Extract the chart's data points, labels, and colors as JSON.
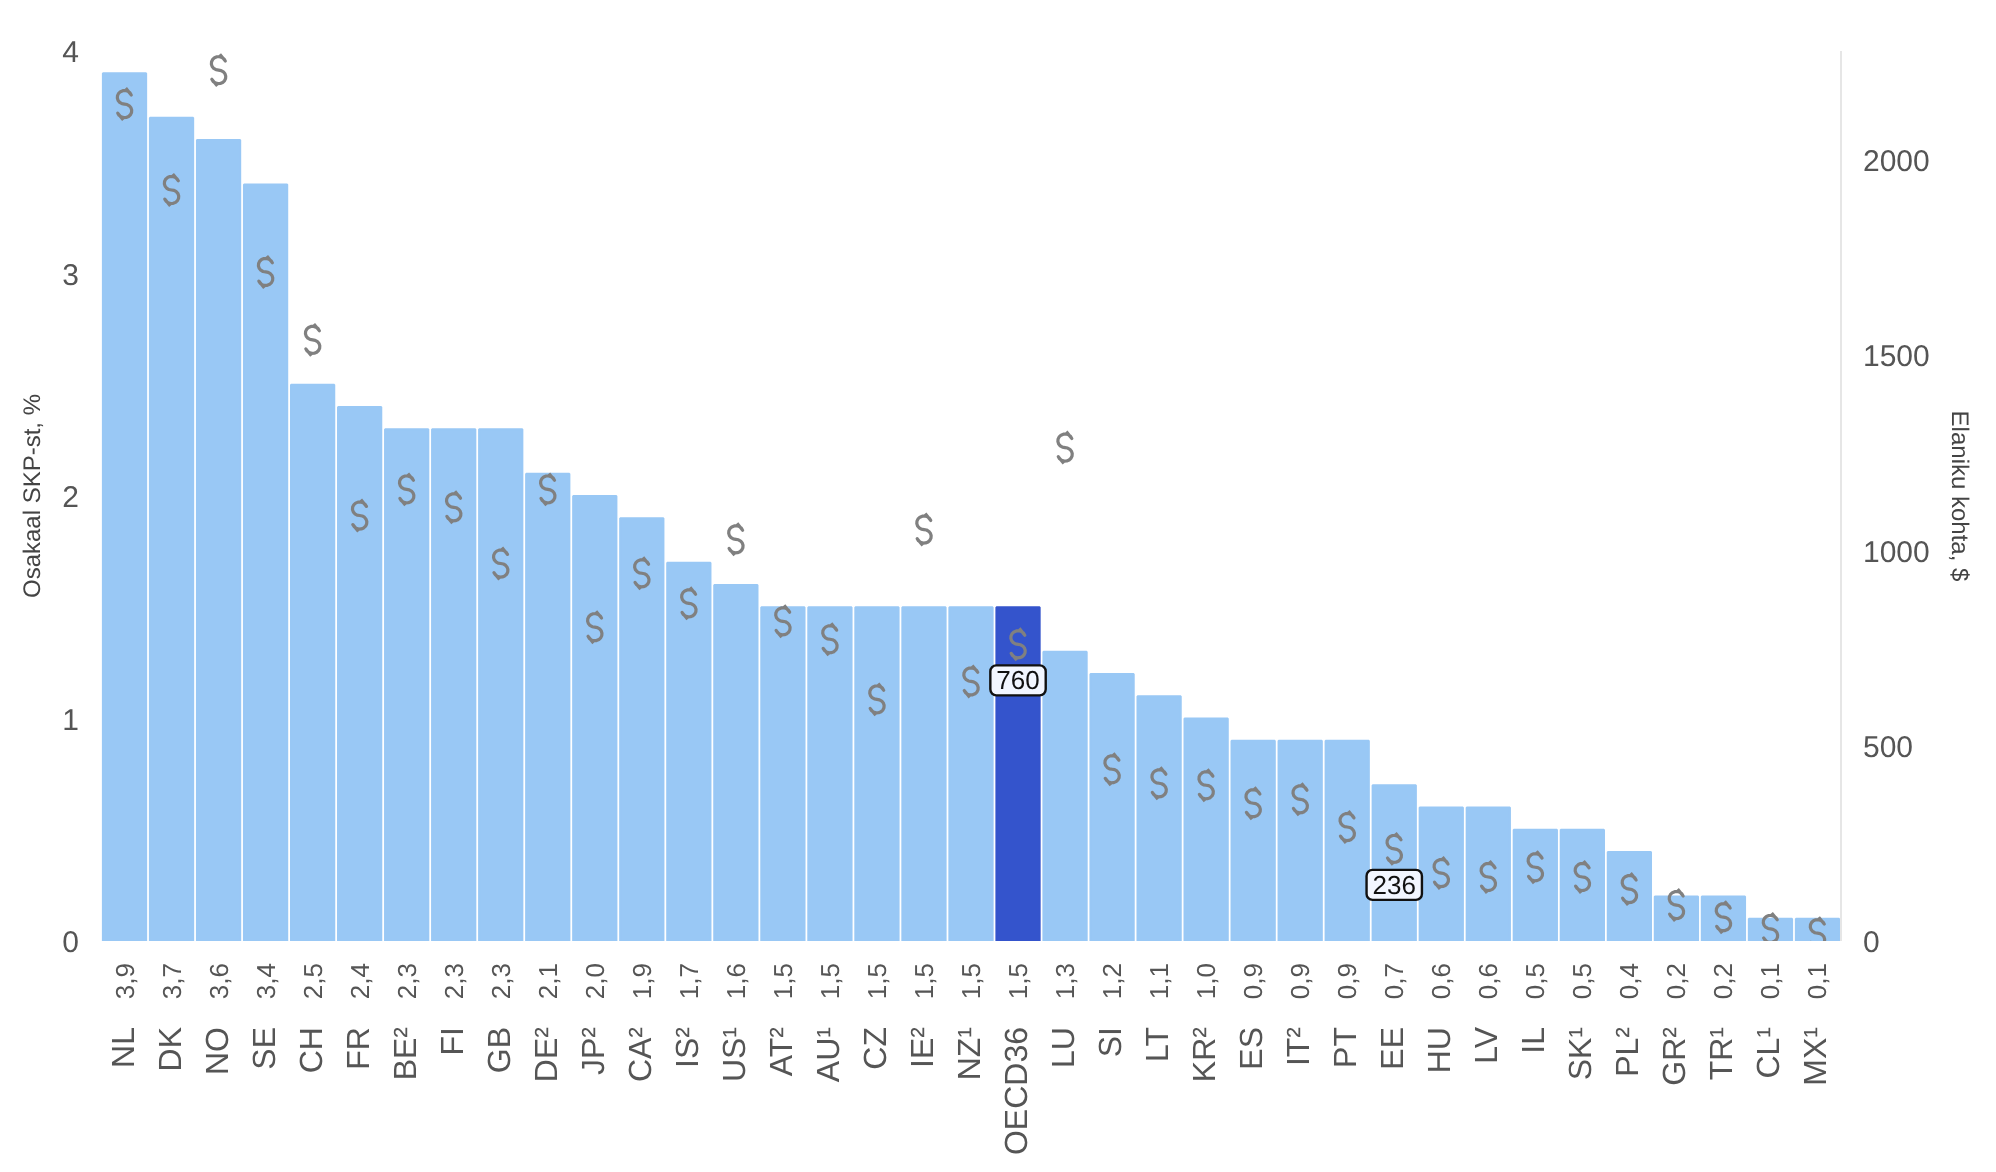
{
  "chart_data": {
    "type": "bar",
    "ylabel": "Osakaal SKP-st, %",
    "y2label": "Elaniku kohta, $",
    "categories": [
      "NL",
      "DK",
      "NO",
      "SE",
      "CH",
      "FR",
      "BE²",
      "FI",
      "GB",
      "DE²",
      "JP²",
      "CA²",
      "IS²",
      "US¹",
      "AT²",
      "AU¹",
      "CZ",
      "IE²",
      "NZ¹",
      "OECD36",
      "LU",
      "SI",
      "LT",
      "KR²",
      "ES",
      "IT²",
      "PT",
      "EE",
      "HU",
      "LV",
      "IL",
      "SK¹",
      "PL²",
      "GR²",
      "TR¹",
      "CL¹",
      "MX¹"
    ],
    "ylim": [
      0,
      4
    ],
    "yticks": [
      0,
      1,
      2,
      3,
      4
    ],
    "y2lim": [
      0,
      2280
    ],
    "y2ticks": [
      0,
      500,
      1000,
      1500,
      2000
    ],
    "grid": false,
    "series": [
      {
        "values": [
          3.9,
          3.7,
          3.6,
          3.4,
          2.5,
          2.4,
          2.3,
          2.3,
          2.3,
          2.1,
          2.0,
          1.9,
          1.7,
          1.6,
          1.5,
          1.5,
          1.5,
          1.5,
          1.5,
          1.5,
          1.3,
          1.2,
          1.1,
          1.0,
          0.9,
          0.9,
          0.9,
          0.7,
          0.6,
          0.6,
          0.5,
          0.5,
          0.4,
          0.2,
          0.2,
          0.1,
          0.1
        ],
        "colors": [
          "#99c8f5",
          "#99c8f5",
          "#99c8f5",
          "#99c8f5",
          "#99c8f5",
          "#99c8f5",
          "#99c8f5",
          "#99c8f5",
          "#99c8f5",
          "#99c8f5",
          "#99c8f5",
          "#99c8f5",
          "#99c8f5",
          "#99c8f5",
          "#99c8f5",
          "#99c8f5",
          "#99c8f5",
          "#99c8f5",
          "#99c8f5",
          "#3454cc",
          "#99c8f5",
          "#99c8f5",
          "#99c8f5",
          "#99c8f5",
          "#99c8f5",
          "#99c8f5",
          "#99c8f5",
          "#99c8f5",
          "#99c8f5",
          "#99c8f5",
          "#99c8f5",
          "#99c8f5",
          "#99c8f5",
          "#99c8f5",
          "#99c8f5",
          "#99c8f5",
          "#99c8f5"
        ],
        "value_labels": [
          "3,9",
          "3,7",
          "3,6",
          "3,4",
          "2,5",
          "2,4",
          "2,3",
          "2,3",
          "2,3",
          "2,1",
          "2,0",
          "1,9",
          "1,7",
          "1,6",
          "1,5",
          "1,5",
          "1,5",
          "1,5",
          "1,5",
          "1,5",
          "1,3",
          "1,2",
          "1,1",
          "1,0",
          "0,9",
          "0,9",
          "0,9",
          "0,7",
          "0,6",
          "0,6",
          "0,5",
          "0,5",
          "0,4",
          "0,2",
          "0,2",
          "0,1",
          "0,1"
        ]
      },
      {
        "type": "scatter",
        "axis": "y2",
        "color": "#808080",
        "values": [
          2144,
          1924,
          2231,
          1714,
          1540,
          1090,
          1157,
          1111,
          967,
          1157,
          804,
          942,
          865,
          1029,
          819,
          773,
          619,
          1054,
          665,
          760,
          1264,
          440,
          404,
          399,
          353,
          363,
          292,
          236,
          174,
          164,
          189,
          164,
          133,
          92,
          61,
          31,
          20
        ],
        "value_labels": [
          null,
          null,
          null,
          null,
          null,
          null,
          null,
          null,
          null,
          null,
          null,
          null,
          null,
          null,
          null,
          null,
          null,
          null,
          null,
          "760",
          null,
          null,
          null,
          null,
          null,
          null,
          null,
          "236",
          null,
          null,
          null,
          null,
          null,
          null,
          null,
          null,
          null
        ]
      }
    ]
  }
}
